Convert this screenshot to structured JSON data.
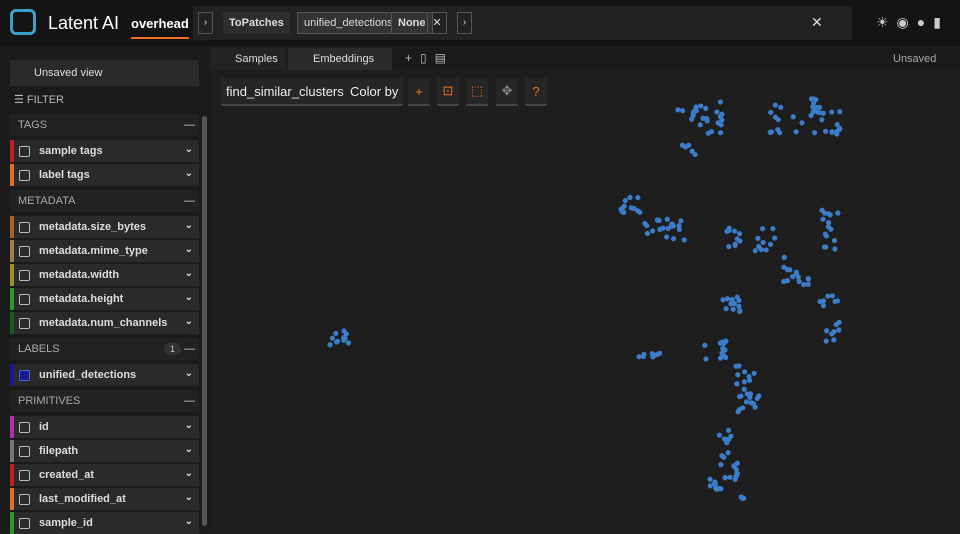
{
  "header": {
    "brand": "Latent AI",
    "dataset": "overhead",
    "view_stage": {
      "name": "ToPatches",
      "field": "unified_detections",
      "value": "None"
    }
  },
  "sidebar": {
    "view_selector": "Unsaved view",
    "filter": "FILTER",
    "groups": [
      {
        "title": "TAGS",
        "items": [
          "sample tags",
          "label tags"
        ]
      },
      {
        "title": "METADATA",
        "items": [
          "metadata.size_bytes",
          "metadata.mime_type",
          "metadata.width",
          "metadata.height",
          "metadata.num_channels"
        ]
      },
      {
        "title": "LABELS",
        "badge": "1",
        "items": [
          "unified_detections"
        ]
      },
      {
        "title": "PRIMITIVES",
        "items": [
          "id",
          "filepath",
          "created_at",
          "last_modified_at",
          "sample_id"
        ]
      }
    ]
  },
  "tabs": [
    "Samples",
    "Embeddings"
  ],
  "status": "Unsaved",
  "embeddings": {
    "brain_key": "find_similar_clusters",
    "color_by": "Color by"
  }
}
